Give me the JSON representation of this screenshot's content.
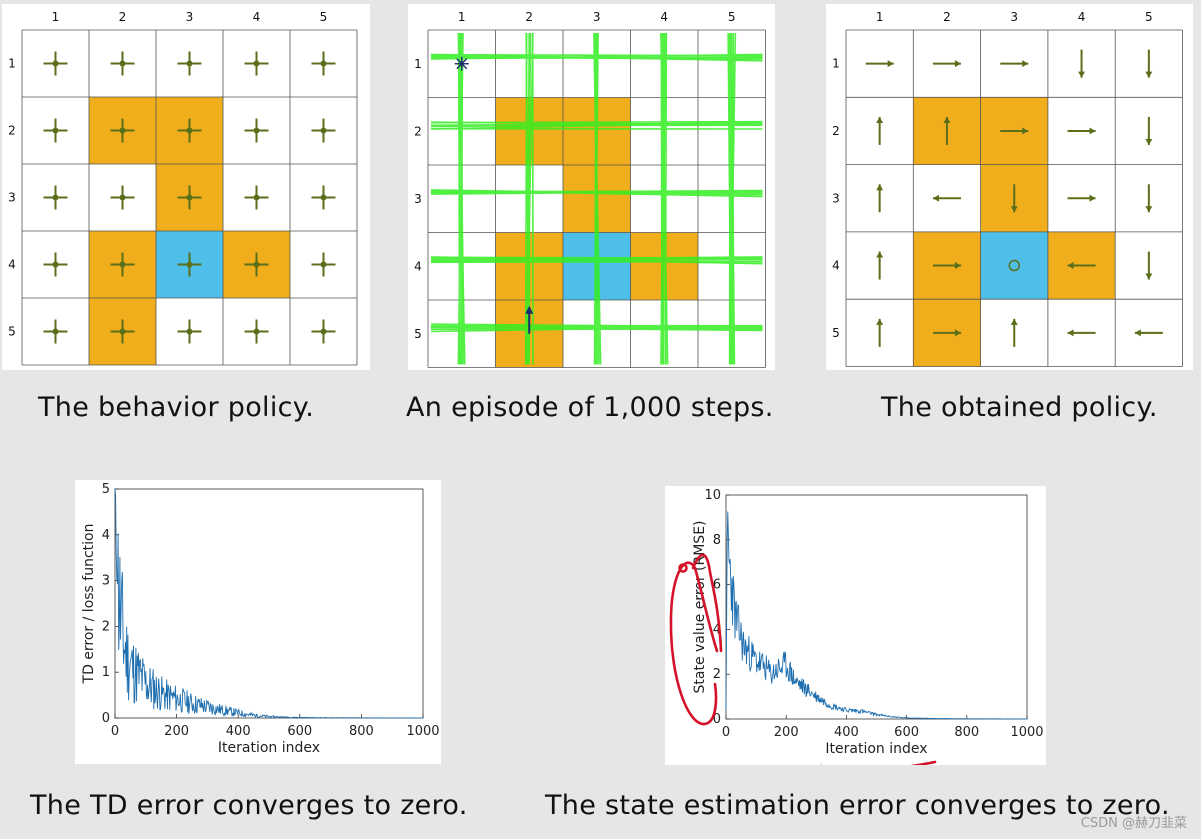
{
  "colors": {
    "forbidden": "#f0ad1c",
    "target": "#4dbfe8",
    "arrow": "#5b6e1a",
    "trajectory": "#33ee22",
    "line": "#1f6fb0",
    "annotation": "#d4122a",
    "grid": "#555555"
  },
  "grid": {
    "size": 5,
    "col_labels": [
      "1",
      "2",
      "3",
      "4",
      "5"
    ],
    "row_labels": [
      "1",
      "2",
      "3",
      "4",
      "5"
    ],
    "forbidden_cells": [
      [
        2,
        2
      ],
      [
        2,
        3
      ],
      [
        3,
        3
      ],
      [
        4,
        2
      ],
      [
        4,
        4
      ],
      [
        5,
        2
      ]
    ],
    "target_cell": [
      4,
      3
    ]
  },
  "panels": {
    "behavior": {
      "caption": "The behavior policy."
    },
    "episode": {
      "caption": "An episode of 1,000 steps."
    },
    "obtained": {
      "caption": "The obtained policy.",
      "actions": [
        [
          "right",
          "right",
          "right",
          "down",
          "down"
        ],
        [
          "up",
          "up",
          "right",
          "right",
          "down"
        ],
        [
          "up",
          "left",
          "down",
          "right",
          "down"
        ],
        [
          "up",
          "right",
          "stay",
          "left",
          "down"
        ],
        [
          "up",
          "right",
          "up",
          "left",
          "left"
        ]
      ]
    }
  },
  "chart_data": [
    {
      "type": "line",
      "title": "",
      "caption": "The TD error converges to zero.",
      "xlabel": "Iteration index",
      "ylabel": "TD error / loss function",
      "xlim": [
        0,
        1000
      ],
      "ylim": [
        0,
        5
      ],
      "xticks": [
        "0",
        "200",
        "400",
        "600",
        "800",
        "1000"
      ],
      "yticks": [
        "0",
        "1",
        "2",
        "3",
        "4",
        "5"
      ],
      "grid": false,
      "series": [
        {
          "x": [
            0,
            5,
            10,
            20,
            30,
            40,
            60,
            80,
            100,
            130,
            160,
            200,
            250,
            300,
            350,
            400,
            450,
            500,
            550,
            600,
            700,
            800,
            900,
            1000
          ],
          "y": [
            4.8,
            3.6,
            2.9,
            2.1,
            1.6,
            1.3,
            1.05,
            0.9,
            0.75,
            0.62,
            0.5,
            0.42,
            0.32,
            0.24,
            0.17,
            0.11,
            0.06,
            0.03,
            0.02,
            0.01,
            0.005,
            0.003,
            0.002,
            0.001
          ]
        }
      ]
    },
    {
      "type": "line",
      "title": "",
      "caption": "The state estimation error converges to zero.",
      "xlabel": "Iteration index",
      "ylabel": "State value error (RMSE)",
      "xlim": [
        0,
        1000
      ],
      "ylim": [
        0,
        10
      ],
      "xticks": [
        "0",
        "200",
        "400",
        "600",
        "800",
        "1000"
      ],
      "yticks": [
        "0",
        "2",
        "4",
        "6",
        "8",
        "10"
      ],
      "grid": false,
      "series": [
        {
          "x": [
            0,
            5,
            10,
            15,
            20,
            30,
            40,
            60,
            80,
            100,
            130,
            150,
            170,
            200,
            230,
            260,
            300,
            350,
            400,
            450,
            500,
            550,
            600,
            700,
            800,
            1000
          ],
          "y": [
            0.4,
            9.6,
            7.0,
            6.4,
            5.9,
            4.6,
            4.1,
            3.2,
            2.9,
            2.6,
            2.3,
            2.0,
            2.2,
            2.4,
            1.7,
            1.4,
            1.0,
            0.6,
            0.4,
            0.35,
            0.2,
            0.1,
            0.05,
            0.02,
            0.01,
            0.005
          ]
        }
      ]
    }
  ],
  "watermark": "CSDN @赫刀韭菜"
}
